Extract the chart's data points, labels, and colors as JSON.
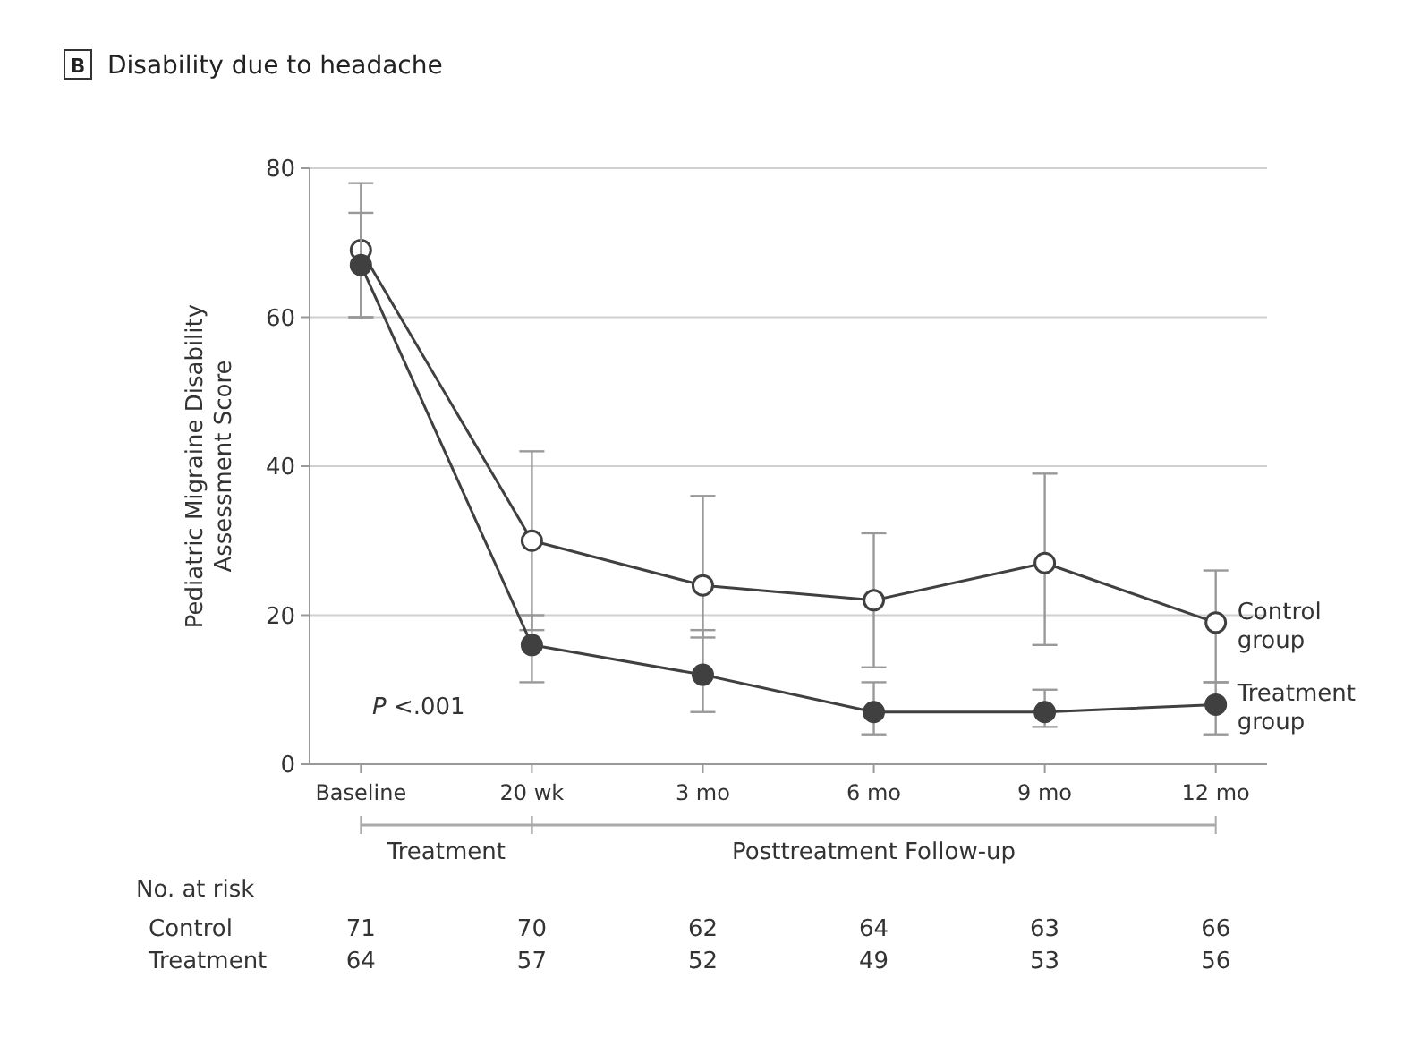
{
  "chart_data": {
    "type": "line",
    "title": "Disability due to headache",
    "ylabel": "Pediatric Migraine Disability Assessment Score",
    "categories": [
      "Baseline",
      "20 wk",
      "3 mo",
      "6 mo",
      "9 mo",
      "12 mo"
    ],
    "ylim": [
      0,
      80
    ],
    "yticks": [
      0,
      20,
      40,
      60,
      80
    ],
    "grid": "y",
    "marker": "circle",
    "line_style": "solid",
    "series": [
      {
        "name": "Control group",
        "color": "#404040",
        "values": [
          69,
          30,
          24,
          22,
          27,
          19
        ],
        "errors": [
          [
            60,
            78
          ],
          [
            18,
            42
          ],
          [
            17,
            36
          ],
          [
            13,
            31
          ],
          [
            16,
            39
          ],
          [
            11,
            26
          ]
        ]
      },
      {
        "name": "Treatment group",
        "color": "#404040",
        "values": [
          67,
          16,
          12,
          7,
          7,
          8
        ],
        "errors": [
          [
            60,
            74
          ],
          [
            11,
            20
          ],
          [
            7,
            18
          ],
          [
            4,
            11
          ],
          [
            5,
            10
          ],
          [
            4,
            11
          ]
        ]
      }
    ],
    "annotations": [
      "B",
      "P <.001",
      "Treatment",
      "Posttreatment Follow-up",
      "No. at risk",
      "Control",
      "Treatment",
      "71",
      "70",
      "62",
      "64",
      "63",
      "66",
      "64",
      "57",
      "52",
      "49",
      "53",
      "56"
    ]
  }
}
